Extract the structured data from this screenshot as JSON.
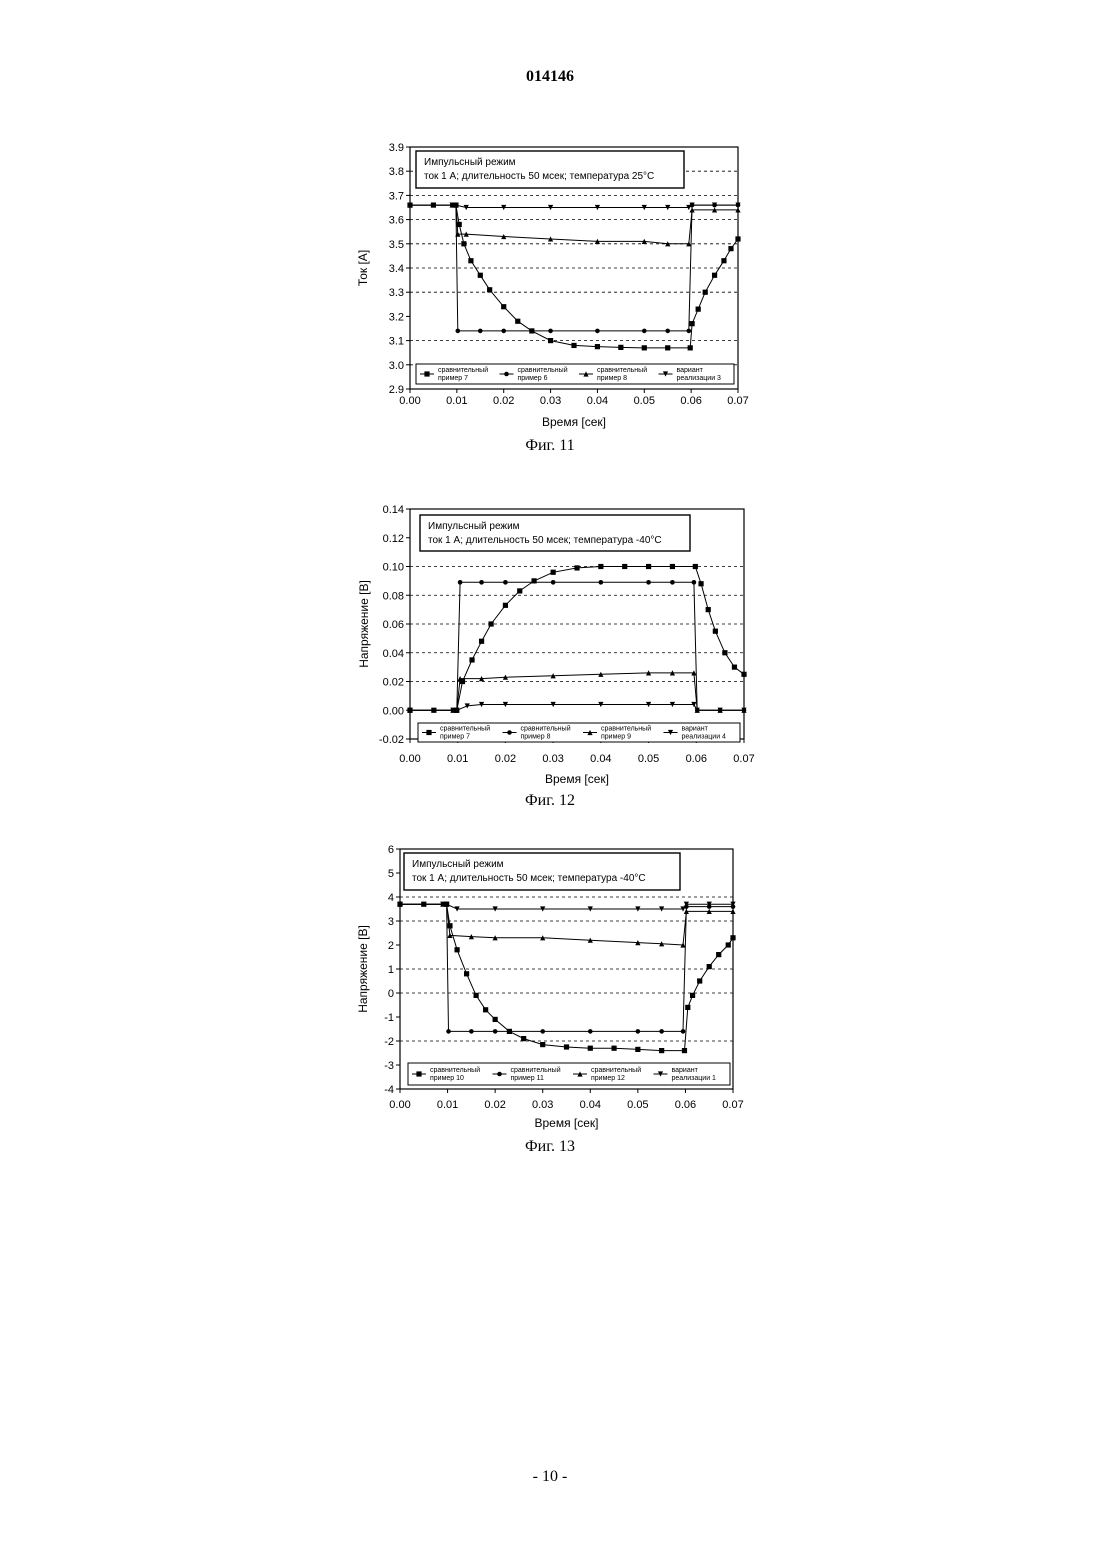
{
  "document": {
    "number": "014146",
    "page_number": "- 10 -"
  },
  "chart_data": [
    {
      "type": "line",
      "caption": "Фиг. 11",
      "xlabel": "Время [сек]",
      "ylabel": "Ток [А]",
      "xlim": [
        0.0,
        0.07
      ],
      "ylim": [
        2.9,
        3.9
      ],
      "xticks": [
        "0.00",
        "0.01",
        "0.02",
        "0.03",
        "0.04",
        "0.05",
        "0.06",
        "0.07"
      ],
      "yticks": [
        "2.9",
        "3.0",
        "3.1",
        "3.2",
        "3.3",
        "3.4",
        "3.5",
        "3.6",
        "3.7",
        "3.8",
        "3.9"
      ],
      "hgrid": [
        3.0,
        3.1,
        3.3,
        3.4,
        3.5,
        3.6,
        3.7,
        3.8
      ],
      "annotation": [
        "Импульсный режим",
        "ток 1 А; длительность 50 мсек; температура 25°С"
      ],
      "legend": [
        "сравнительный пример 7",
        "сравнительный пример 6",
        "сравнительный пример 8",
        "вариант реализации 3"
      ],
      "series": [
        {
          "marker": "square",
          "x": [
            0,
            0.005,
            0.0098,
            0.0105,
            0.0115,
            0.013,
            0.015,
            0.017,
            0.02,
            0.023,
            0.026,
            0.03,
            0.035,
            0.04,
            0.045,
            0.05,
            0.055,
            0.0598,
            0.0602,
            0.0615,
            0.063,
            0.065,
            0.067,
            0.0685,
            0.07
          ],
          "y": [
            3.66,
            3.66,
            3.66,
            3.58,
            3.5,
            3.43,
            3.37,
            3.31,
            3.24,
            3.18,
            3.14,
            3.1,
            3.08,
            3.075,
            3.072,
            3.07,
            3.07,
            3.07,
            3.17,
            3.23,
            3.3,
            3.37,
            3.43,
            3.48,
            3.52
          ]
        },
        {
          "marker": "circle",
          "x": [
            0,
            0.009,
            0.0098,
            0.0102,
            0.015,
            0.02,
            0.03,
            0.04,
            0.05,
            0.055,
            0.0595,
            0.0602,
            0.065,
            0.07
          ],
          "y": [
            3.66,
            3.66,
            3.66,
            3.14,
            3.14,
            3.14,
            3.14,
            3.14,
            3.14,
            3.14,
            3.14,
            3.66,
            3.66,
            3.66
          ]
        },
        {
          "marker": "triangle-up",
          "x": [
            0,
            0.009,
            0.0098,
            0.0102,
            0.012,
            0.02,
            0.03,
            0.04,
            0.05,
            0.055,
            0.0595,
            0.0602,
            0.065,
            0.07
          ],
          "y": [
            3.66,
            3.66,
            3.66,
            3.54,
            3.54,
            3.53,
            3.52,
            3.51,
            3.51,
            3.5,
            3.5,
            3.64,
            3.64,
            3.64
          ]
        },
        {
          "marker": "triangle-down",
          "x": [
            0,
            0.009,
            0.0098,
            0.012,
            0.02,
            0.03,
            0.04,
            0.05,
            0.055,
            0.0595,
            0.0602,
            0.065,
            0.07
          ],
          "y": [
            3.66,
            3.66,
            3.66,
            3.65,
            3.65,
            3.65,
            3.65,
            3.65,
            3.65,
            3.65,
            3.66,
            3.66,
            3.66
          ]
        }
      ]
    },
    {
      "type": "line",
      "caption": "Фиг. 12",
      "xlabel": "Время [сек]",
      "ylabel": "Напряжение [В]",
      "xlim": [
        0.0,
        0.07
      ],
      "ylim": [
        -0.02,
        0.14
      ],
      "xticks": [
        "0.00",
        "0.01",
        "0.02",
        "0.03",
        "0.04",
        "0.05",
        "0.06",
        "0.07"
      ],
      "yticks": [
        "-0.02",
        "0.00",
        "0.02",
        "0.04",
        "0.06",
        "0.08",
        "0.10",
        "0.12",
        "0.14"
      ],
      "hgrid": [
        0.02,
        0.04,
        0.06,
        0.08,
        0.1
      ],
      "annotation": [
        "Импульсный режим",
        "ток 1 А; длительность 50 мсек; температура -40°С"
      ],
      "legend": [
        "сравнительный пример 7",
        "сравнительный пример 8",
        "сравнительный пример 9",
        "вариант реализации 4"
      ],
      "series": [
        {
          "marker": "square",
          "x": [
            0,
            0.005,
            0.0098,
            0.011,
            0.013,
            0.015,
            0.017,
            0.02,
            0.023,
            0.026,
            0.03,
            0.035,
            0.04,
            0.045,
            0.05,
            0.055,
            0.0598,
            0.061,
            0.0625,
            0.064,
            0.066,
            0.068,
            0.07
          ],
          "y": [
            0.0,
            0.0,
            0.0,
            0.02,
            0.035,
            0.048,
            0.06,
            0.073,
            0.083,
            0.09,
            0.096,
            0.099,
            0.1,
            0.1,
            0.1,
            0.1,
            0.1,
            0.088,
            0.07,
            0.055,
            0.04,
            0.03,
            0.025
          ]
        },
        {
          "marker": "circle",
          "x": [
            0,
            0.009,
            0.0098,
            0.0105,
            0.015,
            0.02,
            0.03,
            0.04,
            0.05,
            0.055,
            0.0595,
            0.0602,
            0.065,
            0.07
          ],
          "y": [
            0.0,
            0.0,
            0.0,
            0.089,
            0.089,
            0.089,
            0.089,
            0.089,
            0.089,
            0.089,
            0.089,
            0.0,
            0.0,
            0.0
          ]
        },
        {
          "marker": "triangle-up",
          "x": [
            0,
            0.009,
            0.0098,
            0.0105,
            0.015,
            0.02,
            0.03,
            0.04,
            0.05,
            0.055,
            0.0595,
            0.0602,
            0.065,
            0.07
          ],
          "y": [
            0.0,
            0.0,
            0.0,
            0.022,
            0.022,
            0.023,
            0.024,
            0.025,
            0.026,
            0.026,
            0.026,
            0.0,
            0.0,
            0.0
          ]
        },
        {
          "marker": "triangle-down",
          "x": [
            0,
            0.009,
            0.0098,
            0.012,
            0.015,
            0.02,
            0.03,
            0.04,
            0.05,
            0.055,
            0.0595,
            0.0602,
            0.065,
            0.07
          ],
          "y": [
            0.0,
            0.0,
            0.0,
            0.003,
            0.004,
            0.004,
            0.004,
            0.004,
            0.004,
            0.004,
            0.004,
            0.0,
            0.0,
            0.0
          ]
        }
      ]
    },
    {
      "type": "line",
      "caption": "Фиг. 13",
      "xlabel": "Время [сек]",
      "ylabel": "Напряжение [В]",
      "xlim": [
        0.0,
        0.07
      ],
      "ylim": [
        -4,
        6
      ],
      "xticks": [
        "0.00",
        "0.01",
        "0.02",
        "0.03",
        "0.04",
        "0.05",
        "0.06",
        "0.07"
      ],
      "yticks": [
        "-4",
        "-3",
        "-2",
        "-1",
        "0",
        "1",
        "2",
        "3",
        "4",
        "5",
        "6"
      ],
      "hgrid": [
        -2,
        0,
        1,
        3,
        4
      ],
      "annotation": [
        "Импульсный режим",
        "ток 1 А; длительность 50 мсек; температура -40°С"
      ],
      "legend": [
        "сравнительный пример 10",
        "сравнительный пример 11",
        "сравнительный пример 12",
        "вариант реализации 1"
      ],
      "series": [
        {
          "marker": "square",
          "x": [
            0,
            0.005,
            0.0098,
            0.0105,
            0.012,
            0.014,
            0.016,
            0.018,
            0.02,
            0.023,
            0.026,
            0.03,
            0.035,
            0.04,
            0.045,
            0.05,
            0.055,
            0.0598,
            0.0605,
            0.0615,
            0.063,
            0.065,
            0.067,
            0.069,
            0.07
          ],
          "y": [
            3.7,
            3.7,
            3.7,
            2.8,
            1.8,
            0.8,
            -0.1,
            -0.7,
            -1.1,
            -1.6,
            -1.9,
            -2.15,
            -2.25,
            -2.3,
            -2.3,
            -2.35,
            -2.4,
            -2.4,
            -0.6,
            -0.1,
            0.5,
            1.1,
            1.6,
            2.0,
            2.3
          ]
        },
        {
          "marker": "circle",
          "x": [
            0,
            0.009,
            0.0098,
            0.0102,
            0.015,
            0.02,
            0.03,
            0.04,
            0.05,
            0.055,
            0.0595,
            0.0602,
            0.065,
            0.07
          ],
          "y": [
            3.7,
            3.7,
            3.7,
            -1.6,
            -1.6,
            -1.6,
            -1.6,
            -1.6,
            -1.6,
            -1.6,
            -1.6,
            3.6,
            3.6,
            3.6
          ]
        },
        {
          "marker": "triangle-up",
          "x": [
            0,
            0.009,
            0.0098,
            0.0105,
            0.015,
            0.02,
            0.03,
            0.04,
            0.05,
            0.055,
            0.0595,
            0.0602,
            0.065,
            0.07
          ],
          "y": [
            3.7,
            3.7,
            3.7,
            2.4,
            2.35,
            2.3,
            2.3,
            2.2,
            2.1,
            2.05,
            2.0,
            3.4,
            3.4,
            3.4
          ]
        },
        {
          "marker": "triangle-down",
          "x": [
            0,
            0.009,
            0.0098,
            0.012,
            0.02,
            0.03,
            0.04,
            0.05,
            0.055,
            0.0595,
            0.0602,
            0.065,
            0.07
          ],
          "y": [
            3.7,
            3.7,
            3.7,
            3.5,
            3.5,
            3.5,
            3.5,
            3.5,
            3.5,
            3.5,
            3.7,
            3.7,
            3.7
          ]
        }
      ]
    }
  ]
}
